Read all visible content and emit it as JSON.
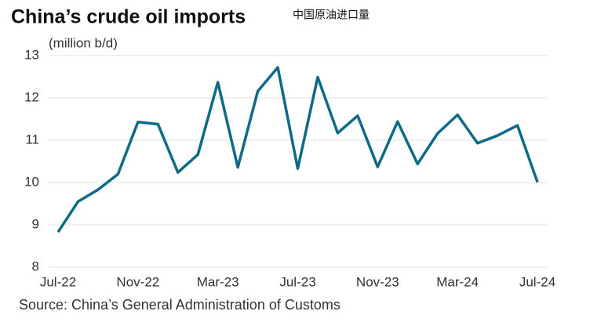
{
  "chart_data": {
    "type": "line",
    "title": "China’s crude oil imports",
    "subtitle": "中国原油进口量",
    "y_label": "(million b/d)",
    "source": "Source: China’s General Administration of Customs",
    "categories": [
      "Jul-22",
      null,
      null,
      null,
      "Nov-22",
      null,
      null,
      null,
      "Mar-23",
      null,
      null,
      null,
      "Jul-23",
      null,
      null,
      null,
      "Nov-23",
      null,
      null,
      null,
      "Mar-24",
      null,
      null,
      null,
      "Jul-24"
    ],
    "series": [
      {
        "color": "#0e6a86",
        "values": [
          8.83,
          9.55,
          9.83,
          10.2,
          11.43,
          11.38,
          10.24,
          10.66,
          12.37,
          10.36,
          12.16,
          12.72,
          10.33,
          12.49,
          11.17,
          11.58,
          10.37,
          11.44,
          10.44,
          11.16,
          11.6,
          10.93,
          11.11,
          11.35,
          10.01
        ]
      }
    ],
    "ylim": [
      8,
      13
    ],
    "yticks": [
      8,
      9,
      10,
      11,
      12,
      13
    ],
    "grid": true
  }
}
